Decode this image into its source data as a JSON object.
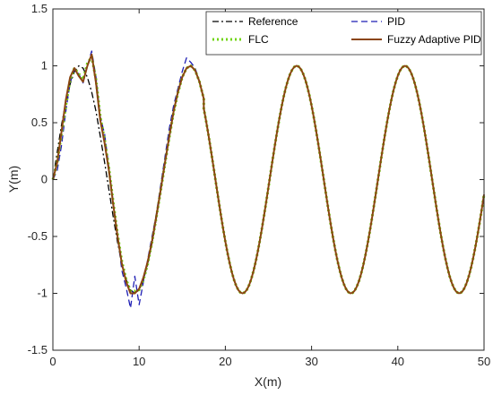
{
  "chart_data": {
    "type": "line",
    "xlabel": "X(m)",
    "ylabel": "Y(m)",
    "xlim": [
      0,
      50
    ],
    "ylim": [
      -1.5,
      1.5
    ],
    "x_ticks": [
      "0",
      "10",
      "20",
      "30",
      "40",
      "50"
    ],
    "y_ticks": [
      "-1.5",
      "-1",
      "-0.5",
      "0",
      "0.5",
      "1",
      "1.5"
    ],
    "grid": false,
    "legend_position": "top-right",
    "series": [
      {
        "name": "Reference",
        "color": "#000000",
        "style": "dash-dot",
        "points": [
          [
            0,
            0
          ],
          [
            0.5,
            0.24
          ],
          [
            1,
            0.48
          ],
          [
            1.5,
            0.68
          ],
          [
            2,
            0.84
          ],
          [
            2.5,
            0.95
          ],
          [
            3,
            1.0
          ],
          [
            3.5,
            0.98
          ],
          [
            4,
            0.9
          ],
          [
            4.5,
            0.77
          ],
          [
            5,
            0.6
          ],
          [
            5.5,
            0.38
          ],
          [
            6,
            0.15
          ],
          [
            6.5,
            -0.09
          ],
          [
            7,
            -0.33
          ],
          [
            7.5,
            -0.55
          ],
          [
            8,
            -0.74
          ],
          [
            8.5,
            -0.88
          ],
          [
            9,
            -0.97
          ],
          [
            9.5,
            -1.0
          ],
          [
            10,
            -0.97
          ],
          [
            10.5,
            -0.88
          ],
          [
            11,
            -0.74
          ],
          [
            11.5,
            -0.56
          ],
          [
            12,
            -0.34
          ],
          [
            12.5,
            -0.1
          ],
          [
            13,
            0.14
          ],
          [
            13.5,
            0.37
          ],
          [
            14,
            0.59
          ],
          [
            14.5,
            0.76
          ],
          [
            15,
            0.9
          ],
          [
            15.5,
            0.98
          ],
          [
            16,
            1.0
          ],
          [
            16.5,
            0.96
          ],
          [
            17,
            0.86
          ],
          [
            17.5,
            0.71
          ]
        ]
      },
      {
        "name": "PID",
        "color": "#1f1fb4",
        "style": "dashed",
        "points": [
          [
            0,
            0
          ],
          [
            0.5,
            0.08
          ],
          [
            1,
            0.3
          ],
          [
            1.5,
            0.6
          ],
          [
            2,
            0.85
          ],
          [
            2.5,
            0.97
          ],
          [
            3,
            0.93
          ],
          [
            3.5,
            0.85
          ],
          [
            4,
            1.0
          ],
          [
            4.5,
            1.13
          ],
          [
            5,
            0.9
          ],
          [
            5.5,
            0.55
          ],
          [
            6,
            0.4
          ],
          [
            6.5,
            0.1
          ],
          [
            7,
            -0.2
          ],
          [
            7.5,
            -0.5
          ],
          [
            8,
            -0.8
          ],
          [
            8.5,
            -0.95
          ],
          [
            9,
            -1.13
          ],
          [
            9.5,
            -0.85
          ],
          [
            10,
            -1.1
          ],
          [
            10.5,
            -0.9
          ],
          [
            11,
            -0.7
          ],
          [
            11.5,
            -0.5
          ],
          [
            12,
            -0.3
          ],
          [
            12.5,
            -0.05
          ],
          [
            13,
            0.2
          ],
          [
            13.5,
            0.45
          ],
          [
            14,
            0.65
          ],
          [
            14.5,
            0.8
          ],
          [
            15,
            0.95
          ],
          [
            15.5,
            1.07
          ],
          [
            16,
            1.03
          ],
          [
            16.5,
            0.98
          ],
          [
            17,
            0.86
          ],
          [
            17.5,
            0.71
          ]
        ]
      },
      {
        "name": "FLC",
        "color": "#6fd40f",
        "style": "dotted",
        "points": [
          [
            0,
            0
          ],
          [
            0.5,
            0.15
          ],
          [
            1,
            0.4
          ],
          [
            1.5,
            0.65
          ],
          [
            2,
            0.88
          ],
          [
            2.5,
            0.98
          ],
          [
            3,
            0.93
          ],
          [
            3.5,
            0.88
          ],
          [
            4,
            1.02
          ],
          [
            4.5,
            1.08
          ],
          [
            5,
            0.88
          ],
          [
            5.5,
            0.55
          ],
          [
            6,
            0.35
          ],
          [
            6.5,
            0.1
          ],
          [
            7,
            -0.2
          ],
          [
            7.5,
            -0.48
          ],
          [
            8,
            -0.72
          ],
          [
            8.5,
            -0.88
          ],
          [
            9,
            -0.98
          ],
          [
            9.5,
            -0.98
          ],
          [
            10,
            -0.97
          ],
          [
            10.5,
            -0.88
          ],
          [
            11,
            -0.74
          ],
          [
            11.5,
            -0.55
          ],
          [
            12,
            -0.33
          ],
          [
            12.5,
            -0.1
          ],
          [
            13,
            0.14
          ],
          [
            13.5,
            0.37
          ],
          [
            14,
            0.59
          ],
          [
            14.5,
            0.76
          ],
          [
            15,
            0.9
          ],
          [
            15.5,
            0.98
          ],
          [
            16,
            1.0
          ],
          [
            16.5,
            0.96
          ],
          [
            17,
            0.86
          ],
          [
            17.5,
            0.71
          ]
        ]
      },
      {
        "name": "Fuzzy Adaptive PID",
        "color": "#8b4513",
        "style": "solid",
        "points": [
          [
            0,
            0
          ],
          [
            0.5,
            0.15
          ],
          [
            1,
            0.42
          ],
          [
            1.5,
            0.7
          ],
          [
            2,
            0.9
          ],
          [
            2.5,
            0.98
          ],
          [
            3,
            0.91
          ],
          [
            3.5,
            0.86
          ],
          [
            4,
            1.0
          ],
          [
            4.5,
            1.1
          ],
          [
            5,
            0.85
          ],
          [
            5.5,
            0.52
          ],
          [
            6,
            0.32
          ],
          [
            6.5,
            0.08
          ],
          [
            7,
            -0.22
          ],
          [
            7.5,
            -0.5
          ],
          [
            8,
            -0.74
          ],
          [
            8.5,
            -0.9
          ],
          [
            9,
            -1.0
          ],
          [
            9.5,
            -1.0
          ],
          [
            10,
            -0.96
          ],
          [
            10.5,
            -0.86
          ],
          [
            11,
            -0.72
          ],
          [
            11.5,
            -0.54
          ],
          [
            12,
            -0.32
          ],
          [
            12.5,
            -0.09
          ],
          [
            13,
            0.15
          ],
          [
            13.5,
            0.38
          ],
          [
            14,
            0.6
          ],
          [
            14.5,
            0.77
          ],
          [
            15,
            0.9
          ],
          [
            15.5,
            0.98
          ],
          [
            16,
            1.0
          ],
          [
            16.5,
            0.96
          ],
          [
            17,
            0.86
          ],
          [
            17.5,
            0.71
          ]
        ]
      }
    ],
    "tail_function": {
      "description_units": "sinusoid continuing all series together from x = 17.5 to 50",
      "amplitude": 1.0,
      "period": 12.566,
      "x_start": 17.5,
      "x_end": 50
    }
  }
}
